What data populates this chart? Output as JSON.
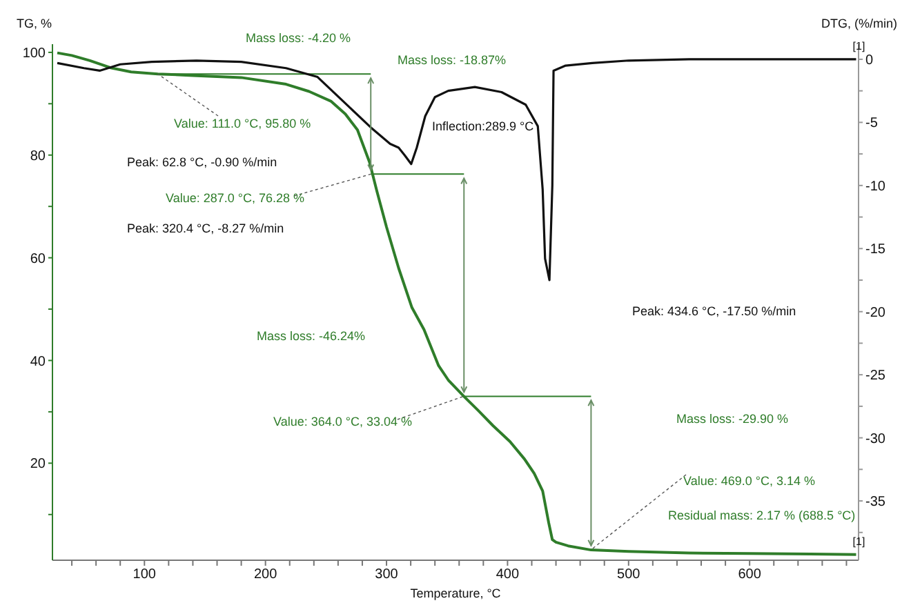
{
  "chart_data": {
    "type": "line",
    "xlabel": "Temperature, °C",
    "ylabel": "TG, %",
    "y2label": "DTG, (%/min)",
    "xlim": [
      24,
      690
    ],
    "xticks": [
      {
        "value": 40,
        "label": null
      },
      {
        "value": 60,
        "label": null
      },
      {
        "value": 80,
        "label": null
      },
      100,
      {
        "value": 120,
        "label": null
      },
      {
        "value": 140,
        "label": null
      },
      {
        "value": 160,
        "label": null
      },
      {
        "value": 180,
        "label": null
      },
      200,
      {
        "value": 220,
        "label": null
      },
      {
        "value": 240,
        "label": null
      },
      {
        "value": 260,
        "label": null
      },
      {
        "value": 280,
        "label": null
      },
      300,
      {
        "value": 320,
        "label": null
      },
      {
        "value": 340,
        "label": null
      },
      {
        "value": 360,
        "label": null
      },
      {
        "value": 380,
        "label": null
      },
      400,
      {
        "value": 420,
        "label": null
      },
      {
        "value": 440,
        "label": null
      },
      {
        "value": 460,
        "label": null
      },
      {
        "value": 480,
        "label": null
      },
      500,
      {
        "value": 520,
        "label": null
      },
      {
        "value": 540,
        "label": null
      },
      {
        "value": 560,
        "label": null
      },
      {
        "value": 580,
        "label": null
      },
      600,
      {
        "value": 620,
        "label": null
      },
      {
        "value": 640,
        "label": null
      },
      {
        "value": 660,
        "label": null
      },
      {
        "value": 680,
        "label": null
      }
    ],
    "ylim": [
      1.1,
      101.6
    ],
    "yticks": [
      {
        "value": 10,
        "label": null
      },
      20,
      {
        "value": 30,
        "label": null
      },
      40,
      {
        "value": 50,
        "label": null
      },
      60,
      {
        "value": 70,
        "label": null
      },
      80,
      {
        "value": 90,
        "label": null
      },
      100
    ],
    "y2lim": [
      -39.7,
      1.2
    ],
    "y2ticks": [
      0,
      {
        "value": -2.5,
        "label": null
      },
      -5,
      {
        "value": -7.5,
        "label": null
      },
      -10,
      {
        "value": -12.5,
        "label": null
      },
      -15,
      {
        "value": -17.5,
        "label": null
      },
      -20,
      {
        "value": -22.5,
        "label": null
      },
      -25,
      {
        "value": -27.5,
        "label": null
      },
      -30,
      {
        "value": -32.5,
        "label": null
      },
      -35,
      {
        "value": -37.5,
        "label": null
      }
    ],
    "series": [
      {
        "name": "[1]",
        "color": "#2f7d2a",
        "x": [
          28,
          40,
          55,
          72,
          89,
          111,
          140,
          180,
          217,
          236,
          254,
          266,
          276,
          286,
          292,
          300,
          310,
          321,
          331,
          343,
          351,
          364,
          376,
          388,
          402,
          414,
          422,
          429,
          434,
          437,
          440,
          450,
          469,
          500,
          550,
          600,
          650,
          688
        ],
        "values": [
          99.9,
          99.4,
          98.4,
          97.0,
          96.2,
          95.8,
          95.5,
          95.1,
          93.8,
          92.4,
          90.5,
          88,
          84.9,
          78.6,
          73,
          66,
          58,
          50.3,
          46,
          39,
          36.2,
          33.0,
          30.2,
          27.3,
          24.2,
          20.8,
          18,
          14.6,
          8.4,
          5.1,
          4.6,
          3.9,
          3.1,
          2.8,
          2.5,
          2.4,
          2.3,
          2.2
        ]
      },
      {
        "color": "#2f7d2a",
        "x": [
          111,
          287
        ],
        "values": [
          95.8,
          95.8
        ]
      },
      {
        "color": "#2f7d2a",
        "x": [
          287,
          364
        ],
        "values": [
          76.3,
          76.3
        ]
      },
      {
        "color": "#2f7d2a",
        "x": [
          364,
          469
        ],
        "values": [
          33.0,
          33.0
        ]
      },
      {
        "name": "[1]",
        "color": "#111111",
        "axis": "y2",
        "x": [
          28,
          50,
          63,
          80,
          106,
          143,
          180,
          217,
          243,
          265,
          287,
          303,
          310,
          315,
          320.4,
          325,
          332,
          340,
          351,
          373,
          395,
          415,
          425,
          429,
          431,
          434.6,
          437,
          438,
          448,
          470,
          500,
          550,
          600,
          650,
          688
        ],
        "values": [
          -0.3,
          -0.7,
          -0.9,
          -0.4,
          -0.2,
          -0.1,
          -0.2,
          -0.7,
          -1.4,
          -3.4,
          -5.4,
          -6.7,
          -7.0,
          -7.6,
          -8.3,
          -7,
          -4.5,
          -3.0,
          -2.5,
          -2.2,
          -2.6,
          -3.6,
          -5.3,
          -10.3,
          -15.8,
          -17.5,
          -10,
          -0.9,
          -0.5,
          -0.3,
          -0.1,
          0,
          0,
          0,
          0
        ]
      }
    ],
    "annotations": [
      "Mass loss: -4.20 %",
      "Mass loss: -18.87%",
      {
        "text": "Value: 111.0 °C, 95.80 %",
        "x": 111,
        "y": 95.8
      },
      "Inflection:289.9 °C",
      "Peak: 62.8 °C, -0.90 %/min",
      {
        "text": "Value: 287.0 °C, 76.28 %",
        "x": 287,
        "y": 76.28
      },
      "Peak: 320.4 °C, -8.27 %/min",
      "Peak: 434.6 °C, -17.50 %/min",
      "Mass loss: -46.24%",
      {
        "text": "Value: 364.0 °C, 33.04 %",
        "x": 364,
        "y": 33.04
      },
      "Mass loss: -29.90 %",
      {
        "text": "Value: 469.0 °C, 3.14 %",
        "x": 469,
        "y": 3.14
      },
      "Residual mass: 2.17 % (688.5 °C)"
    ]
  }
}
